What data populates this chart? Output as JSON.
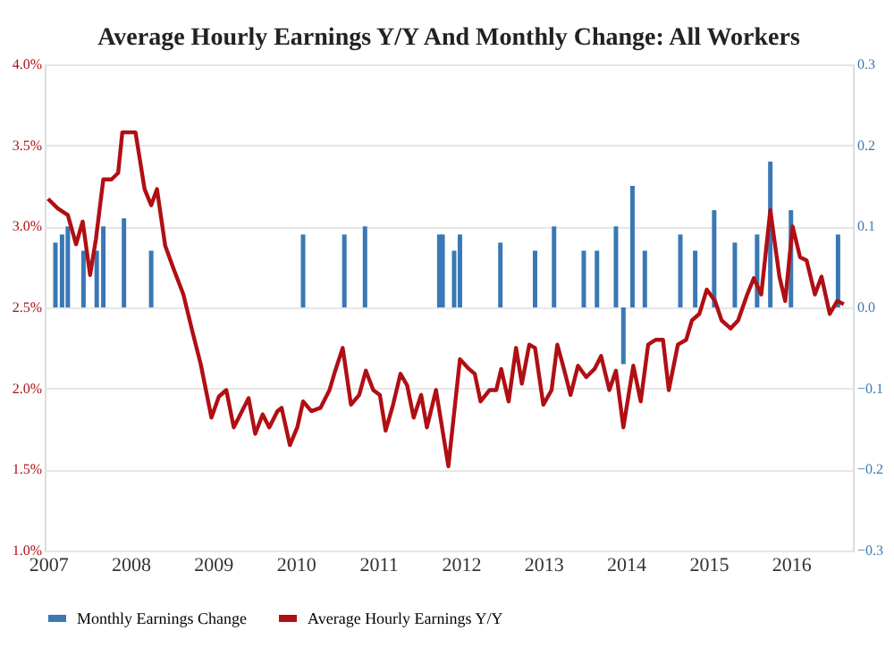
{
  "chart_data": {
    "type": "line",
    "title": "Average Hourly Earnings Y/Y And Monthly Change: All Workers",
    "xlim": [
      2006.96,
      2016.75
    ],
    "xticks": [
      2007,
      2008,
      2009,
      2010,
      2011,
      2012,
      2013,
      2014,
      2015,
      2016
    ],
    "ylim": [
      1.0,
      4.0
    ],
    "yticks": [
      {
        "value": 1.0,
        "label": "1.0%"
      },
      {
        "value": 1.5,
        "label": "1.5%"
      },
      {
        "value": 2.0,
        "label": "2.0%"
      },
      {
        "value": 2.5,
        "label": "2.5%"
      },
      {
        "value": 3.0,
        "label": "3.0%"
      },
      {
        "value": 3.5,
        "label": "3.5%"
      },
      {
        "value": 4.0,
        "label": "4.0%"
      }
    ],
    "y2lim": [
      -0.3,
      0.3
    ],
    "y2ticks": [
      -0.3,
      -0.2,
      -0.1,
      {
        "value": 0,
        "label": "0.0"
      },
      0.1,
      0.2,
      0.3
    ],
    "grid": "y",
    "legend": "bottom",
    "marker": "none",
    "line_style": "solid",
    "series": [
      {
        "name": "Monthly Earnings Change",
        "type": "bar",
        "axis": "y2",
        "color": "#3a78b5",
        "x": [
          2007.09,
          2007.17,
          2007.24,
          2007.43,
          2007.59,
          2007.67,
          2007.92,
          2008.25,
          2010.09,
          2010.59,
          2010.84,
          2011.74,
          2011.78,
          2011.92,
          2011.99,
          2012.48,
          2012.9,
          2013.13,
          2013.49,
          2013.65,
          2013.88,
          2013.97,
          2014.08,
          2014.23,
          2014.66,
          2014.84,
          2015.07,
          2015.32,
          2015.59,
          2015.75,
          2016.0,
          2016.57
        ],
        "values": [
          0.08,
          0.09,
          0.1,
          0.07,
          0.07,
          0.1,
          0.11,
          0.07,
          0.09,
          0.09,
          0.1,
          0.09,
          0.09,
          0.07,
          0.09,
          0.08,
          0.07,
          0.1,
          0.07,
          0.07,
          0.1,
          -0.07,
          0.15,
          0.07,
          0.09,
          0.07,
          0.12,
          0.08,
          0.09,
          0.18,
          0.12,
          0.09
        ]
      },
      {
        "name": "Average Hourly Earnings Y/Y",
        "type": "line",
        "axis": "y",
        "color": "#b00f14",
        "x": [
          2007.0,
          2007.12,
          2007.24,
          2007.34,
          2007.42,
          2007.51,
          2007.58,
          2007.67,
          2007.77,
          2007.85,
          2007.9,
          2008.06,
          2008.17,
          2008.25,
          2008.32,
          2008.42,
          2008.52,
          2008.64,
          2008.75,
          2008.85,
          2008.98,
          2009.07,
          2009.16,
          2009.25,
          2009.33,
          2009.43,
          2009.51,
          2009.6,
          2009.68,
          2009.78,
          2009.83,
          2009.93,
          2010.02,
          2010.09,
          2010.19,
          2010.3,
          2010.41,
          2010.48,
          2010.57,
          2010.67,
          2010.77,
          2010.85,
          2010.94,
          2011.02,
          2011.09,
          2011.18,
          2011.27,
          2011.35,
          2011.43,
          2011.52,
          2011.59,
          2011.7,
          2011.85,
          2011.99,
          2012.1,
          2012.17,
          2012.24,
          2012.35,
          2012.43,
          2012.49,
          2012.58,
          2012.67,
          2012.74,
          2012.83,
          2012.9,
          2013.0,
          2013.1,
          2013.17,
          2013.25,
          2013.33,
          2013.42,
          2013.52,
          2013.62,
          2013.7,
          2013.8,
          2013.88,
          2013.97,
          2014.09,
          2014.18,
          2014.27,
          2014.36,
          2014.45,
          2014.52,
          2014.63,
          2014.73,
          2014.8,
          2014.89,
          2014.98,
          2015.08,
          2015.16,
          2015.27,
          2015.36,
          2015.47,
          2015.55,
          2015.64,
          2015.75,
          2015.86,
          2015.93,
          2016.02,
          2016.11,
          2016.19,
          2016.29,
          2016.37,
          2016.47,
          2016.56,
          2016.64
        ],
        "values": [
          3.17,
          3.11,
          3.07,
          2.89,
          3.03,
          2.7,
          2.92,
          3.29,
          3.29,
          3.33,
          3.58,
          3.58,
          3.23,
          3.13,
          3.23,
          2.88,
          2.74,
          2.58,
          2.35,
          2.15,
          1.82,
          1.95,
          1.99,
          1.76,
          1.84,
          1.94,
          1.72,
          1.84,
          1.76,
          1.86,
          1.88,
          1.65,
          1.76,
          1.92,
          1.86,
          1.88,
          1.99,
          2.11,
          2.25,
          1.9,
          1.96,
          2.11,
          1.99,
          1.96,
          1.74,
          1.9,
          2.09,
          2.02,
          1.82,
          1.96,
          1.76,
          1.99,
          1.52,
          2.18,
          2.12,
          2.09,
          1.92,
          1.99,
          1.99,
          2.12,
          1.92,
          2.25,
          2.03,
          2.27,
          2.25,
          1.9,
          1.99,
          2.27,
          2.12,
          1.96,
          2.14,
          2.07,
          2.12,
          2.2,
          1.99,
          2.11,
          1.76,
          2.14,
          1.92,
          2.27,
          2.3,
          2.3,
          1.99,
          2.27,
          2.3,
          2.42,
          2.46,
          2.61,
          2.54,
          2.42,
          2.37,
          2.42,
          2.58,
          2.68,
          2.58,
          3.1,
          2.69,
          2.54,
          3.0,
          2.81,
          2.79,
          2.58,
          2.69,
          2.46,
          2.54,
          2.52
        ]
      }
    ]
  }
}
